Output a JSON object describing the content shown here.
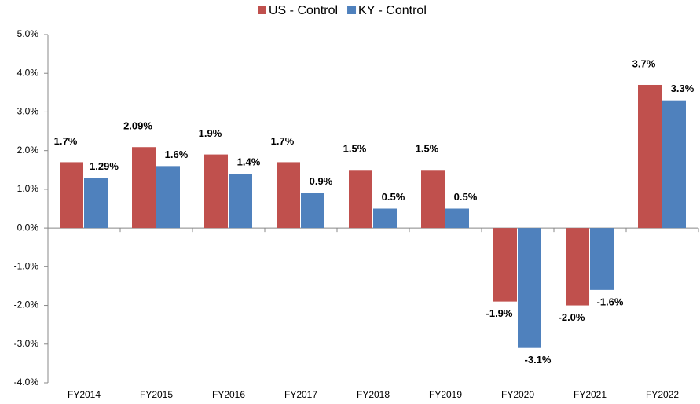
{
  "chart_data": {
    "type": "bar",
    "categories": [
      "FY2014",
      "FY2015",
      "FY2016",
      "FY2017",
      "FY2018",
      "FY2019",
      "FY2020",
      "FY2021",
      "FY2022"
    ],
    "series": [
      {
        "name": "US - Control",
        "color": "#c0504d",
        "values": [
          1.7,
          2.09,
          1.9,
          1.7,
          1.5,
          1.5,
          -1.9,
          -2.0,
          3.7
        ],
        "value_labels": [
          "1.7%",
          "2.09%",
          "1.9%",
          "1.7%",
          "1.5%",
          "1.5%",
          "-1.9%",
          "-2.0%",
          "3.7%"
        ]
      },
      {
        "name": "KY - Control",
        "color": "#4f81bd",
        "values": [
          1.29,
          1.6,
          1.4,
          0.9,
          0.5,
          0.5,
          -3.1,
          -1.6,
          3.3
        ],
        "value_labels": [
          "1.29%",
          "1.6%",
          "1.4%",
          "0.9%",
          "0.5%",
          "0.5%",
          "-3.1%",
          "-1.6%",
          "3.3%"
        ]
      }
    ],
    "ylim": [
      -4,
      5
    ],
    "yticks": [
      {
        "value": -4,
        "label": "-4.0%"
      },
      {
        "value": -3,
        "label": "-3.0%"
      },
      {
        "value": -2,
        "label": "-2.0%"
      },
      {
        "value": -1,
        "label": "-1.0%"
      },
      {
        "value": 0,
        "label": "0.0%"
      },
      {
        "value": 1,
        "label": "1.0%"
      },
      {
        "value": 2,
        "label": "2.0%"
      },
      {
        "value": 3,
        "label": "3.0%"
      },
      {
        "value": 4,
        "label": "4.0%"
      },
      {
        "value": 5,
        "label": "5.0%"
      }
    ],
    "grid": false,
    "legend": "top"
  }
}
